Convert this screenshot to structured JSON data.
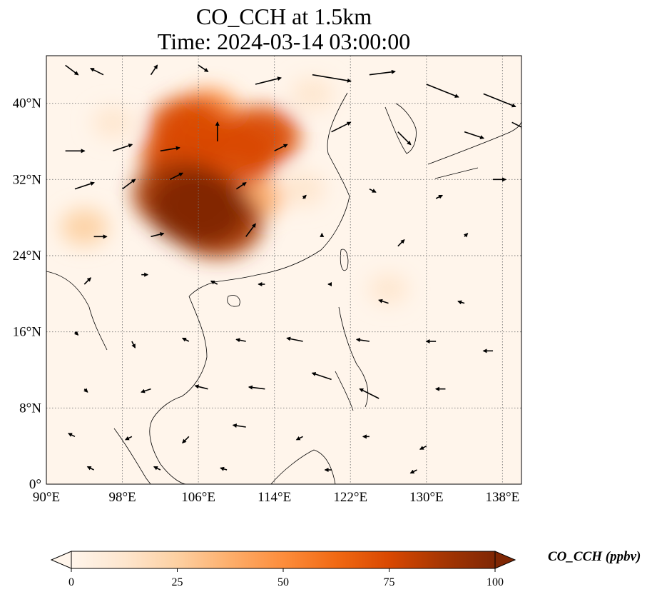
{
  "title_line1": "CO_CCH at 1.5km",
  "title_line2": "Time: 2024-03-14 03:00:00",
  "map": {
    "lon_range": [
      90,
      140
    ],
    "lat_range": [
      0,
      45
    ],
    "lon_ticks": [
      {
        "value": 90,
        "label": "90°E"
      },
      {
        "value": 98,
        "label": "98°E"
      },
      {
        "value": 106,
        "label": "106°E"
      },
      {
        "value": 114,
        "label": "114°E"
      },
      {
        "value": 122,
        "label": "122°E"
      },
      {
        "value": 130,
        "label": "130°E"
      },
      {
        "value": 138,
        "label": "138°E"
      }
    ],
    "lat_ticks": [
      {
        "value": 0,
        "label": "0°"
      },
      {
        "value": 8,
        "label": "8°N"
      },
      {
        "value": 16,
        "label": "16°N"
      },
      {
        "value": 24,
        "label": "24°N"
      },
      {
        "value": 32,
        "label": "32°N"
      },
      {
        "value": 40,
        "label": "40°N"
      }
    ],
    "gridlines": "dotted",
    "background_color": "#fff5eb",
    "concentration_regions": [
      {
        "lon": 106.0,
        "lat": 29.0,
        "value": 100
      },
      {
        "lon": 104.0,
        "lat": 30.5,
        "value": 92
      },
      {
        "lon": 108.0,
        "lat": 27.5,
        "value": 90
      },
      {
        "lon": 104.5,
        "lat": 34.5,
        "value": 80
      },
      {
        "lon": 110.0,
        "lat": 34.5,
        "value": 75
      },
      {
        "lon": 105.0,
        "lat": 37.5,
        "value": 70
      },
      {
        "lon": 112.5,
        "lat": 36.5,
        "value": 70
      },
      {
        "lon": 107.0,
        "lat": 39.0,
        "value": 45
      },
      {
        "lon": 112.0,
        "lat": 30.0,
        "value": 32
      },
      {
        "lon": 117.0,
        "lat": 31.0,
        "value": 18
      },
      {
        "lon": 97.0,
        "lat": 38.0,
        "value": 12
      },
      {
        "lon": 94.0,
        "lat": 27.0,
        "value": 22
      },
      {
        "lon": 126.0,
        "lat": 20.5,
        "value": 10
      },
      {
        "lon": 118.0,
        "lat": 41.0,
        "value": 14
      }
    ],
    "wind_vectors": [
      {
        "lon": 92,
        "lat": 44,
        "u": 2,
        "v": -1.5
      },
      {
        "lon": 96,
        "lat": 43,
        "u": -2,
        "v": 1
      },
      {
        "lon": 101,
        "lat": 43,
        "u": 1,
        "v": 1.5
      },
      {
        "lon": 106,
        "lat": 44,
        "u": 1.5,
        "v": -1
      },
      {
        "lon": 112,
        "lat": 42,
        "u": 4,
        "v": 1
      },
      {
        "lon": 118,
        "lat": 43,
        "u": 6,
        "v": -1
      },
      {
        "lon": 124,
        "lat": 43,
        "u": 4,
        "v": 0.5
      },
      {
        "lon": 130,
        "lat": 42,
        "u": 5,
        "v": -2
      },
      {
        "lon": 136,
        "lat": 41,
        "u": 5,
        "v": -2
      },
      {
        "lon": 139,
        "lat": 38,
        "u": 2,
        "v": -1
      },
      {
        "lon": 92,
        "lat": 35,
        "u": 3,
        "v": 0
      },
      {
        "lon": 97,
        "lat": 35,
        "u": 3,
        "v": 1
      },
      {
        "lon": 102,
        "lat": 35,
        "u": 3,
        "v": 0.5
      },
      {
        "lon": 108,
        "lat": 36,
        "u": 0,
        "v": 3
      },
      {
        "lon": 114,
        "lat": 35,
        "u": 2,
        "v": 1
      },
      {
        "lon": 120,
        "lat": 37,
        "u": 3,
        "v": 1.5
      },
      {
        "lon": 127,
        "lat": 37,
        "u": 2,
        "v": -2
      },
      {
        "lon": 134,
        "lat": 37,
        "u": 3,
        "v": -1
      },
      {
        "lon": 93,
        "lat": 31,
        "u": 3,
        "v": 1
      },
      {
        "lon": 98,
        "lat": 31,
        "u": 2,
        "v": 1.5
      },
      {
        "lon": 103,
        "lat": 32,
        "u": 2,
        "v": 1
      },
      {
        "lon": 110,
        "lat": 31,
        "u": 1.5,
        "v": 1
      },
      {
        "lon": 117,
        "lat": 30,
        "u": 0.5,
        "v": 0.5
      },
      {
        "lon": 124,
        "lat": 31,
        "u": 1,
        "v": -0.5
      },
      {
        "lon": 131,
        "lat": 30,
        "u": 1,
        "v": 0.5
      },
      {
        "lon": 137,
        "lat": 32,
        "u": 2,
        "v": 0
      },
      {
        "lon": 95,
        "lat": 26,
        "u": 2,
        "v": 0
      },
      {
        "lon": 101,
        "lat": 26,
        "u": 2,
        "v": 0.5
      },
      {
        "lon": 111,
        "lat": 26,
        "u": 1.5,
        "v": 2
      },
      {
        "lon": 119,
        "lat": 26,
        "u": 0,
        "v": 0.5
      },
      {
        "lon": 127,
        "lat": 25,
        "u": 1,
        "v": 1
      },
      {
        "lon": 134,
        "lat": 26,
        "u": 0.5,
        "v": 0.5
      },
      {
        "lon": 94,
        "lat": 21,
        "u": 1,
        "v": 1
      },
      {
        "lon": 100,
        "lat": 22,
        "u": 1,
        "v": 0
      },
      {
        "lon": 108,
        "lat": 21,
        "u": -1,
        "v": 0.5
      },
      {
        "lon": 113,
        "lat": 21,
        "u": -1,
        "v": 0
      },
      {
        "lon": 120,
        "lat": 21,
        "u": -0.5,
        "v": 0
      },
      {
        "lon": 126,
        "lat": 19,
        "u": -1.5,
        "v": 0.5
      },
      {
        "lon": 134,
        "lat": 19,
        "u": -1,
        "v": 0.3
      },
      {
        "lon": 93,
        "lat": 16,
        "u": 0.5,
        "v": -0.5
      },
      {
        "lon": 99,
        "lat": 15,
        "u": 0.5,
        "v": -1
      },
      {
        "lon": 105,
        "lat": 15,
        "u": -1,
        "v": 0.5
      },
      {
        "lon": 111,
        "lat": 15,
        "u": -1.5,
        "v": 0.3
      },
      {
        "lon": 117,
        "lat": 15,
        "u": -2.5,
        "v": 0.5
      },
      {
        "lon": 124,
        "lat": 15,
        "u": -2,
        "v": 0.3
      },
      {
        "lon": 131,
        "lat": 15,
        "u": -1.5,
        "v": 0
      },
      {
        "lon": 137,
        "lat": 14,
        "u": -1.5,
        "v": 0
      },
      {
        "lon": 94,
        "lat": 10,
        "u": 0.5,
        "v": -0.5
      },
      {
        "lon": 101,
        "lat": 10,
        "u": -1.5,
        "v": -0.5
      },
      {
        "lon": 107,
        "lat": 10,
        "u": -2,
        "v": 0.5
      },
      {
        "lon": 113,
        "lat": 10,
        "u": -2.5,
        "v": 0.3
      },
      {
        "lon": 120,
        "lat": 11,
        "u": -3,
        "v": 1
      },
      {
        "lon": 125,
        "lat": 9,
        "u": -3,
        "v": 1.5
      },
      {
        "lon": 132,
        "lat": 10,
        "u": -1.5,
        "v": 0
      },
      {
        "lon": 93,
        "lat": 5,
        "u": -1,
        "v": 0.5
      },
      {
        "lon": 99,
        "lat": 5,
        "u": -1,
        "v": -0.5
      },
      {
        "lon": 105,
        "lat": 5,
        "u": -1,
        "v": -1
      },
      {
        "lon": 111,
        "lat": 6,
        "u": -2,
        "v": 0.3
      },
      {
        "lon": 117,
        "lat": 5,
        "u": -1,
        "v": -0.5
      },
      {
        "lon": 124,
        "lat": 5,
        "u": -1,
        "v": 0
      },
      {
        "lon": 130,
        "lat": 4,
        "u": -1,
        "v": -0.5
      },
      {
        "lon": 95,
        "lat": 1.5,
        "u": -1,
        "v": 0.5
      },
      {
        "lon": 102,
        "lat": 1.5,
        "u": -1,
        "v": 0.5
      },
      {
        "lon": 109,
        "lat": 1.5,
        "u": -1,
        "v": 0.3
      },
      {
        "lon": 120,
        "lat": 1.5,
        "u": -1,
        "v": 0
      },
      {
        "lon": 129,
        "lat": 1.5,
        "u": -1,
        "v": -0.5
      }
    ]
  },
  "colorbar": {
    "label": "CO_CCH (ppbv)",
    "min": 0,
    "max": 100,
    "extend": "both",
    "ticks": [
      {
        "value": 0,
        "label": "0"
      },
      {
        "value": 25,
        "label": "25"
      },
      {
        "value": 50,
        "label": "50"
      },
      {
        "value": 75,
        "label": "75"
      },
      {
        "value": 100,
        "label": "100"
      }
    ],
    "colormap": [
      "#fff5eb",
      "#fee6ce",
      "#fdd0a2",
      "#fdae6b",
      "#fd8d3c",
      "#f16913",
      "#d94801",
      "#a63603",
      "#7f2704"
    ]
  }
}
